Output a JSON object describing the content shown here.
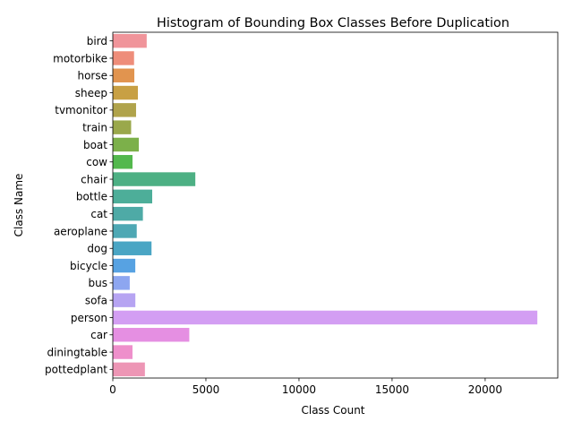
{
  "chart_data": {
    "type": "bar",
    "orientation": "horizontal",
    "title": "Histogram of Bounding Box Classes Before Duplication",
    "xlabel": "Class Count",
    "ylabel": "Class Name",
    "xlim": [
      0,
      23900
    ],
    "xticks": [
      0,
      5000,
      10000,
      15000,
      20000
    ],
    "grid": false,
    "categories": [
      "bird",
      "motorbike",
      "horse",
      "sheep",
      "tvmonitor",
      "train",
      "boat",
      "cow",
      "chair",
      "bottle",
      "cat",
      "aeroplane",
      "dog",
      "bicycle",
      "bus",
      "sofa",
      "person",
      "car",
      "diningtable",
      "pottedplant"
    ],
    "values": [
      1820,
      1141,
      1156,
      1347,
      1249,
      984,
      1397,
      1058,
      4432,
      2116,
      1616,
      1285,
      2079,
      1208,
      909,
      1211,
      22802,
      4108,
      1057,
      1724
    ],
    "colors": [
      "#f0949a",
      "#ee8d7a",
      "#e1944f",
      "#c8a044",
      "#b0a34b",
      "#9aa84b",
      "#7cb04a",
      "#53b84d",
      "#4db084",
      "#4dae99",
      "#4eaaa6",
      "#4ea8b4",
      "#4aa5c4",
      "#57a2e2",
      "#8da6f0",
      "#b6a4f2",
      "#d39ef3",
      "#e58fe2",
      "#ee8fcb",
      "#ed96b5"
    ]
  }
}
